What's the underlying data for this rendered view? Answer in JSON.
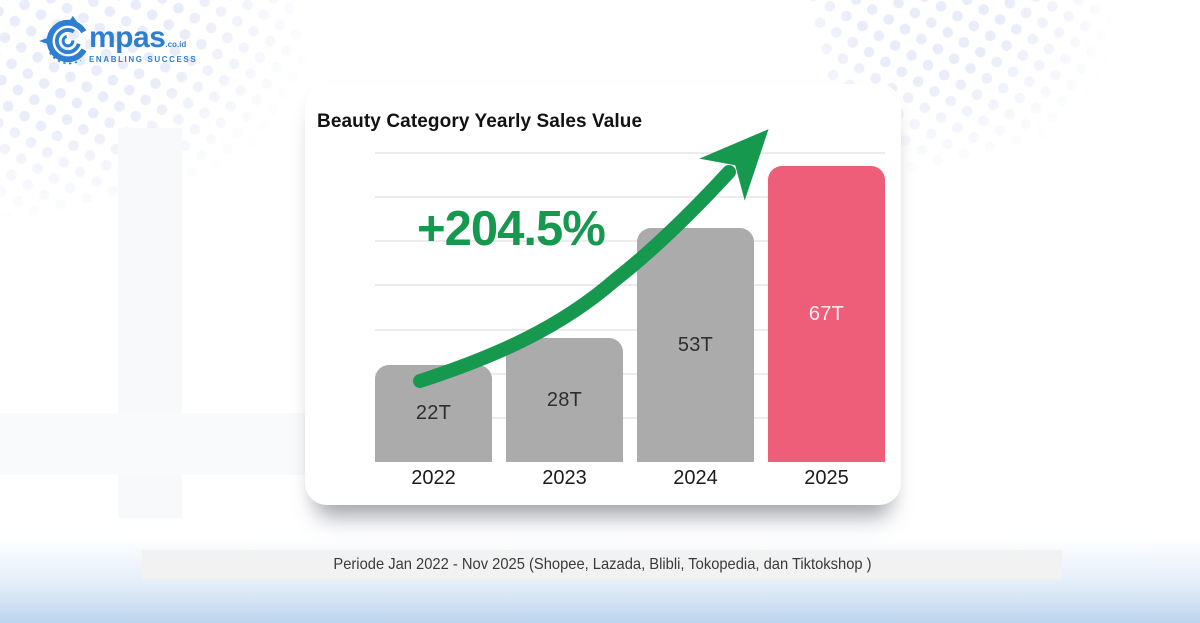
{
  "logo": {
    "brand": "Compas",
    "brand_text": "mpas",
    "domain_suffix": ".co.id",
    "tagline": "ENABLING SUCCESS"
  },
  "chart": {
    "title": "Beauty Category Yearly Sales Value",
    "growth_label": "+204.5%"
  },
  "chart_data": {
    "type": "bar",
    "title": "Beauty Category Yearly Sales Value",
    "categories": [
      "2022",
      "2023",
      "2024",
      "2025"
    ],
    "values": [
      22,
      28,
      53,
      67
    ],
    "value_labels": [
      "22T",
      "28T",
      "53T",
      "67T"
    ],
    "unit": "T",
    "bar_colors": [
      "#ABABAB",
      "#ABABAB",
      "#ABABAB",
      "#EE5E78"
    ],
    "label_colors": [
      "#2E2E2E",
      "#2E2E2E",
      "#2E2E2E",
      "#FBEFF2"
    ],
    "highlight_index": 3,
    "annotation": "+204.5%",
    "xlabel": "",
    "ylabel": "",
    "ylim": [
      0,
      70
    ],
    "grid": "horizontal",
    "legend": "none"
  },
  "caption": {
    "text": "Periode Jan 2022 - Nov 2025 (Shopee, Lazada, Blibli, Tokopedia, dan Tiktokshop )"
  },
  "colors": {
    "green": "#16994F",
    "pink": "#EE5E78",
    "gray_bar": "#ABABAB",
    "logo_blue": "#2E7FD1",
    "caption_bg": "#F2F2F2",
    "dots": "#E9EDF9",
    "bottom_gradient_blue": "#BCD4EE",
    "gridline": "#ECECEC"
  }
}
